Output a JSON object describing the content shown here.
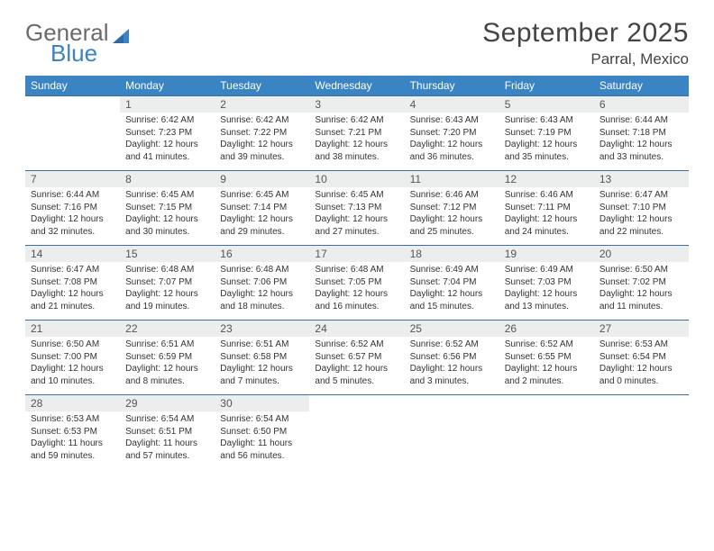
{
  "brand": {
    "line1": "General",
    "line2": "Blue"
  },
  "title": "September 2025",
  "location": "Parral, Mexico",
  "colors": {
    "header_bg": "#3a84c4",
    "header_text": "#ffffff",
    "daynum_bg": "#eceded",
    "rule": "#3a6fa0",
    "brand_gray": "#6b6b6b",
    "brand_blue": "#3a84c4"
  },
  "typography": {
    "title_fontsize": 30,
    "location_fontsize": 17,
    "dayhead_fontsize": 12,
    "daynum_fontsize": 12,
    "body_fontsize": 10
  },
  "dayNames": [
    "Sunday",
    "Monday",
    "Tuesday",
    "Wednesday",
    "Thursday",
    "Friday",
    "Saturday"
  ],
  "weeks": [
    [
      null,
      {
        "n": "1",
        "sr": "6:42 AM",
        "ss": "7:23 PM",
        "dl": "12 hours and 41 minutes."
      },
      {
        "n": "2",
        "sr": "6:42 AM",
        "ss": "7:22 PM",
        "dl": "12 hours and 39 minutes."
      },
      {
        "n": "3",
        "sr": "6:42 AM",
        "ss": "7:21 PM",
        "dl": "12 hours and 38 minutes."
      },
      {
        "n": "4",
        "sr": "6:43 AM",
        "ss": "7:20 PM",
        "dl": "12 hours and 36 minutes."
      },
      {
        "n": "5",
        "sr": "6:43 AM",
        "ss": "7:19 PM",
        "dl": "12 hours and 35 minutes."
      },
      {
        "n": "6",
        "sr": "6:44 AM",
        "ss": "7:18 PM",
        "dl": "12 hours and 33 minutes."
      }
    ],
    [
      {
        "n": "7",
        "sr": "6:44 AM",
        "ss": "7:16 PM",
        "dl": "12 hours and 32 minutes."
      },
      {
        "n": "8",
        "sr": "6:45 AM",
        "ss": "7:15 PM",
        "dl": "12 hours and 30 minutes."
      },
      {
        "n": "9",
        "sr": "6:45 AM",
        "ss": "7:14 PM",
        "dl": "12 hours and 29 minutes."
      },
      {
        "n": "10",
        "sr": "6:45 AM",
        "ss": "7:13 PM",
        "dl": "12 hours and 27 minutes."
      },
      {
        "n": "11",
        "sr": "6:46 AM",
        "ss": "7:12 PM",
        "dl": "12 hours and 25 minutes."
      },
      {
        "n": "12",
        "sr": "6:46 AM",
        "ss": "7:11 PM",
        "dl": "12 hours and 24 minutes."
      },
      {
        "n": "13",
        "sr": "6:47 AM",
        "ss": "7:10 PM",
        "dl": "12 hours and 22 minutes."
      }
    ],
    [
      {
        "n": "14",
        "sr": "6:47 AM",
        "ss": "7:08 PM",
        "dl": "12 hours and 21 minutes."
      },
      {
        "n": "15",
        "sr": "6:48 AM",
        "ss": "7:07 PM",
        "dl": "12 hours and 19 minutes."
      },
      {
        "n": "16",
        "sr": "6:48 AM",
        "ss": "7:06 PM",
        "dl": "12 hours and 18 minutes."
      },
      {
        "n": "17",
        "sr": "6:48 AM",
        "ss": "7:05 PM",
        "dl": "12 hours and 16 minutes."
      },
      {
        "n": "18",
        "sr": "6:49 AM",
        "ss": "7:04 PM",
        "dl": "12 hours and 15 minutes."
      },
      {
        "n": "19",
        "sr": "6:49 AM",
        "ss": "7:03 PM",
        "dl": "12 hours and 13 minutes."
      },
      {
        "n": "20",
        "sr": "6:50 AM",
        "ss": "7:02 PM",
        "dl": "12 hours and 11 minutes."
      }
    ],
    [
      {
        "n": "21",
        "sr": "6:50 AM",
        "ss": "7:00 PM",
        "dl": "12 hours and 10 minutes."
      },
      {
        "n": "22",
        "sr": "6:51 AM",
        "ss": "6:59 PM",
        "dl": "12 hours and 8 minutes."
      },
      {
        "n": "23",
        "sr": "6:51 AM",
        "ss": "6:58 PM",
        "dl": "12 hours and 7 minutes."
      },
      {
        "n": "24",
        "sr": "6:52 AM",
        "ss": "6:57 PM",
        "dl": "12 hours and 5 minutes."
      },
      {
        "n": "25",
        "sr": "6:52 AM",
        "ss": "6:56 PM",
        "dl": "12 hours and 3 minutes."
      },
      {
        "n": "26",
        "sr": "6:52 AM",
        "ss": "6:55 PM",
        "dl": "12 hours and 2 minutes."
      },
      {
        "n": "27",
        "sr": "6:53 AM",
        "ss": "6:54 PM",
        "dl": "12 hours and 0 minutes."
      }
    ],
    [
      {
        "n": "28",
        "sr": "6:53 AM",
        "ss": "6:53 PM",
        "dl": "11 hours and 59 minutes."
      },
      {
        "n": "29",
        "sr": "6:54 AM",
        "ss": "6:51 PM",
        "dl": "11 hours and 57 minutes."
      },
      {
        "n": "30",
        "sr": "6:54 AM",
        "ss": "6:50 PM",
        "dl": "11 hours and 56 minutes."
      },
      null,
      null,
      null,
      null
    ]
  ],
  "labels": {
    "sunrise": "Sunrise:",
    "sunset": "Sunset:",
    "daylight": "Daylight:"
  }
}
